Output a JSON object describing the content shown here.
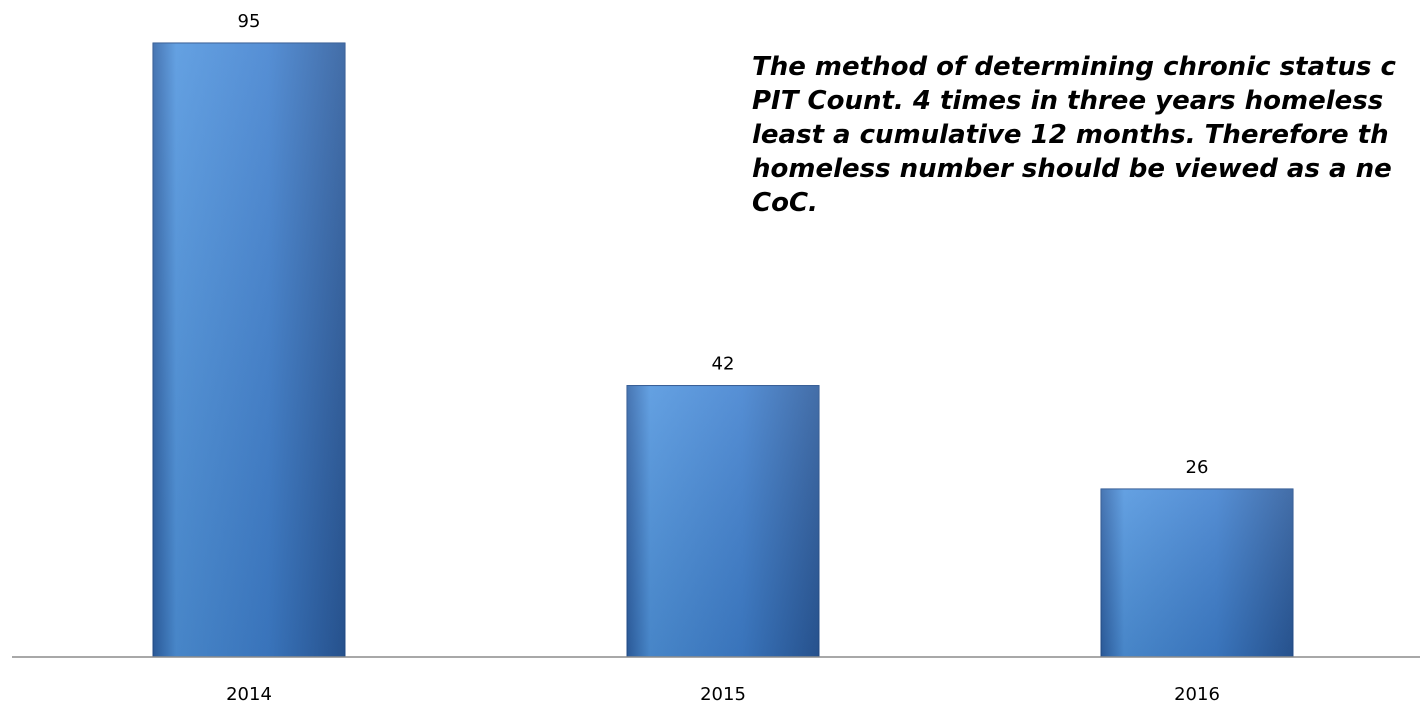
{
  "annotation": {
    "lines": [
      "The method of determining chronic status c",
      "PIT Count.   4 times in three years homeless",
      "least a cumulative 12 months.  Therefore th",
      "homeless number should be viewed as a ne",
      "CoC."
    ]
  },
  "colors": {
    "bar_top": "#4f94de",
    "bar_bottom": "#2f63a8",
    "bar_edge": "#244f8c",
    "axis": "#8c8c8c",
    "text": "#000000",
    "background": "#ffffff"
  },
  "chart_data": {
    "type": "bar",
    "categories": [
      "2014",
      "2015",
      "2016"
    ],
    "values": [
      95,
      42,
      26
    ],
    "data_labels": [
      "95",
      "42",
      "26"
    ],
    "ylim": [
      0,
      95
    ],
    "grid": false,
    "legend": "none"
  }
}
